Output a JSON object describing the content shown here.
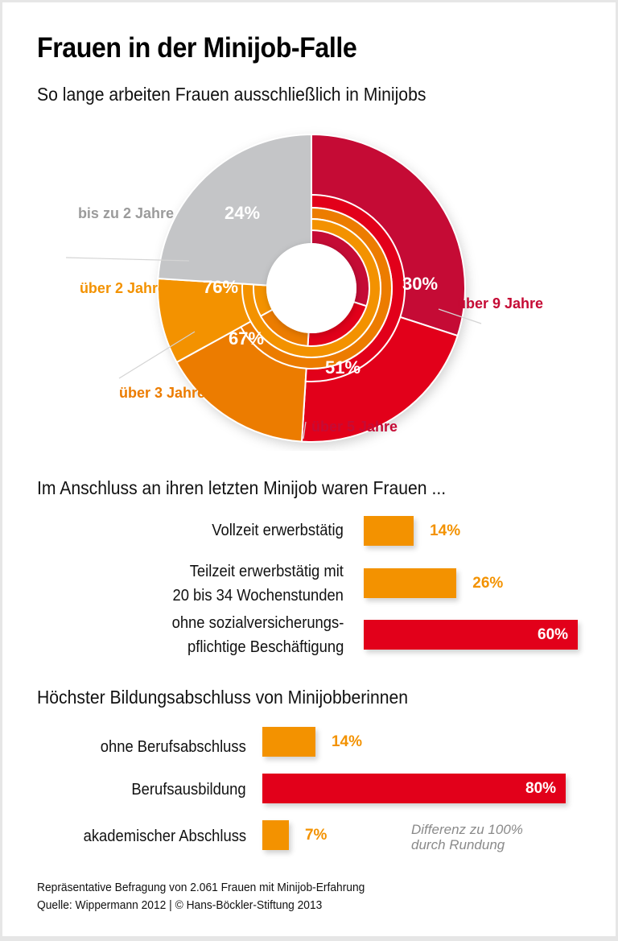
{
  "title": "Frauen in der Minijob-Falle",
  "subtitle": "So lange arbeiten Frauen ausschließlich in Minijobs",
  "colors": {
    "grey": "#c4c5c7",
    "orange_light": "#f39200",
    "orange_dark": "#ec7c00",
    "red": "#e2001a",
    "red_dark": "#c50b35",
    "grey_text": "#9b9b9b"
  },
  "chart_data": [
    {
      "type": "pie",
      "title": "So lange arbeiten Frauen ausschließlich in Minijobs",
      "note": "Donut chart; slices plus inner rings showing cumulative shares",
      "slices": [
        {
          "label": "bis zu 2 Jahre",
          "value": 24,
          "value_label": "24%",
          "color": "#c4c5c7",
          "label_color": "#9b9b9b"
        },
        {
          "label": "über 2 Jahre",
          "value": 76,
          "value_label": "76%",
          "color": "#f39200",
          "label_color": "#f39200"
        },
        {
          "label": "über 3 Jahre",
          "value": 67,
          "value_label": "67%",
          "color": "#ec7c00",
          "label_color": "#ec7c00"
        },
        {
          "label": "über 5 Jahre",
          "value": 51,
          "value_label": "51%",
          "color": "#e2001a",
          "label_color": "#c50b35"
        },
        {
          "label": "über 9 Jahre",
          "value": 30,
          "value_label": "30%",
          "color": "#c50b35",
          "label_color": "#c50b35"
        }
      ],
      "segments_percent": {
        "bis zu 2 Jahre": 24,
        "2 bis 3 Jahre": 9,
        "3 bis 5 Jahre": 16,
        "5 bis 9 Jahre": 21,
        "über 9 Jahre": 30
      }
    },
    {
      "type": "bar",
      "orientation": "horizontal",
      "title": "Im Anschluss an ihren letzten Minijob waren Frauen ...",
      "categories": [
        "Vollzeit erwerbstätig",
        "Teilzeit erwerbstätig mit 20 bis 34 Wochenstunden",
        "ohne sozialversicherungs-pflichtige Beschäftigung"
      ],
      "values": [
        14,
        26,
        60
      ],
      "value_labels": [
        "14%",
        "26%",
        "60%"
      ],
      "colors": [
        "#f39200",
        "#f39200",
        "#e2001a"
      ],
      "xlim": [
        0,
        60
      ]
    },
    {
      "type": "bar",
      "orientation": "horizontal",
      "title": "Höchster Bildungsabschluss von Minijobberinnen",
      "categories": [
        "ohne Berufsabschluss",
        "Berufsausbildung",
        "akademischer Abschluss"
      ],
      "values": [
        14,
        80,
        7
      ],
      "value_labels": [
        "14%",
        "80%",
        "7%"
      ],
      "colors": [
        "#f39200",
        "#e2001a",
        "#f39200"
      ],
      "xlim": [
        0,
        80
      ],
      "annotation": "Differenz zu 100% durch Rundung"
    }
  ],
  "donut_labels": {
    "s0": "bis zu 2 Jahre",
    "s1": "über 2 Jahre",
    "s2": "über 3 Jahre",
    "s3": "über 5 Jahre",
    "s4": "über 9 Jahre",
    "v0": "24%",
    "v1": "76%",
    "v2": "67%",
    "v3": "51%",
    "v4": "30%"
  },
  "section2": {
    "title": "Im Anschluss an ihren letzten Minijob waren Frauen ...",
    "labels": [
      [
        "Vollzeit erwerbstätig"
      ],
      [
        "Teilzeit erwerbstätig mit",
        "20 bis 34 Wochenstunden"
      ],
      [
        "ohne sozialversicherungs-",
        "pflichtige Beschäftigung"
      ]
    ],
    "values": [
      "14%",
      "26%",
      "60%"
    ]
  },
  "section3": {
    "title": "Höchster Bildungsabschluss von Minijobberinnen",
    "labels": [
      "ohne Berufsabschluss",
      "Berufsausbildung",
      "akademischer Abschluss"
    ],
    "values": [
      "14%",
      "80%",
      "7%"
    ],
    "note_line1": "Differenz zu 100%",
    "note_line2": "durch Rundung"
  },
  "footer": {
    "line1": "Repräsentative Befragung von 2.061 Frauen mit Minijob-Erfahrung",
    "line2": "Quelle: Wippermann 2012 | © Hans-Böckler-Stiftung 2013"
  }
}
